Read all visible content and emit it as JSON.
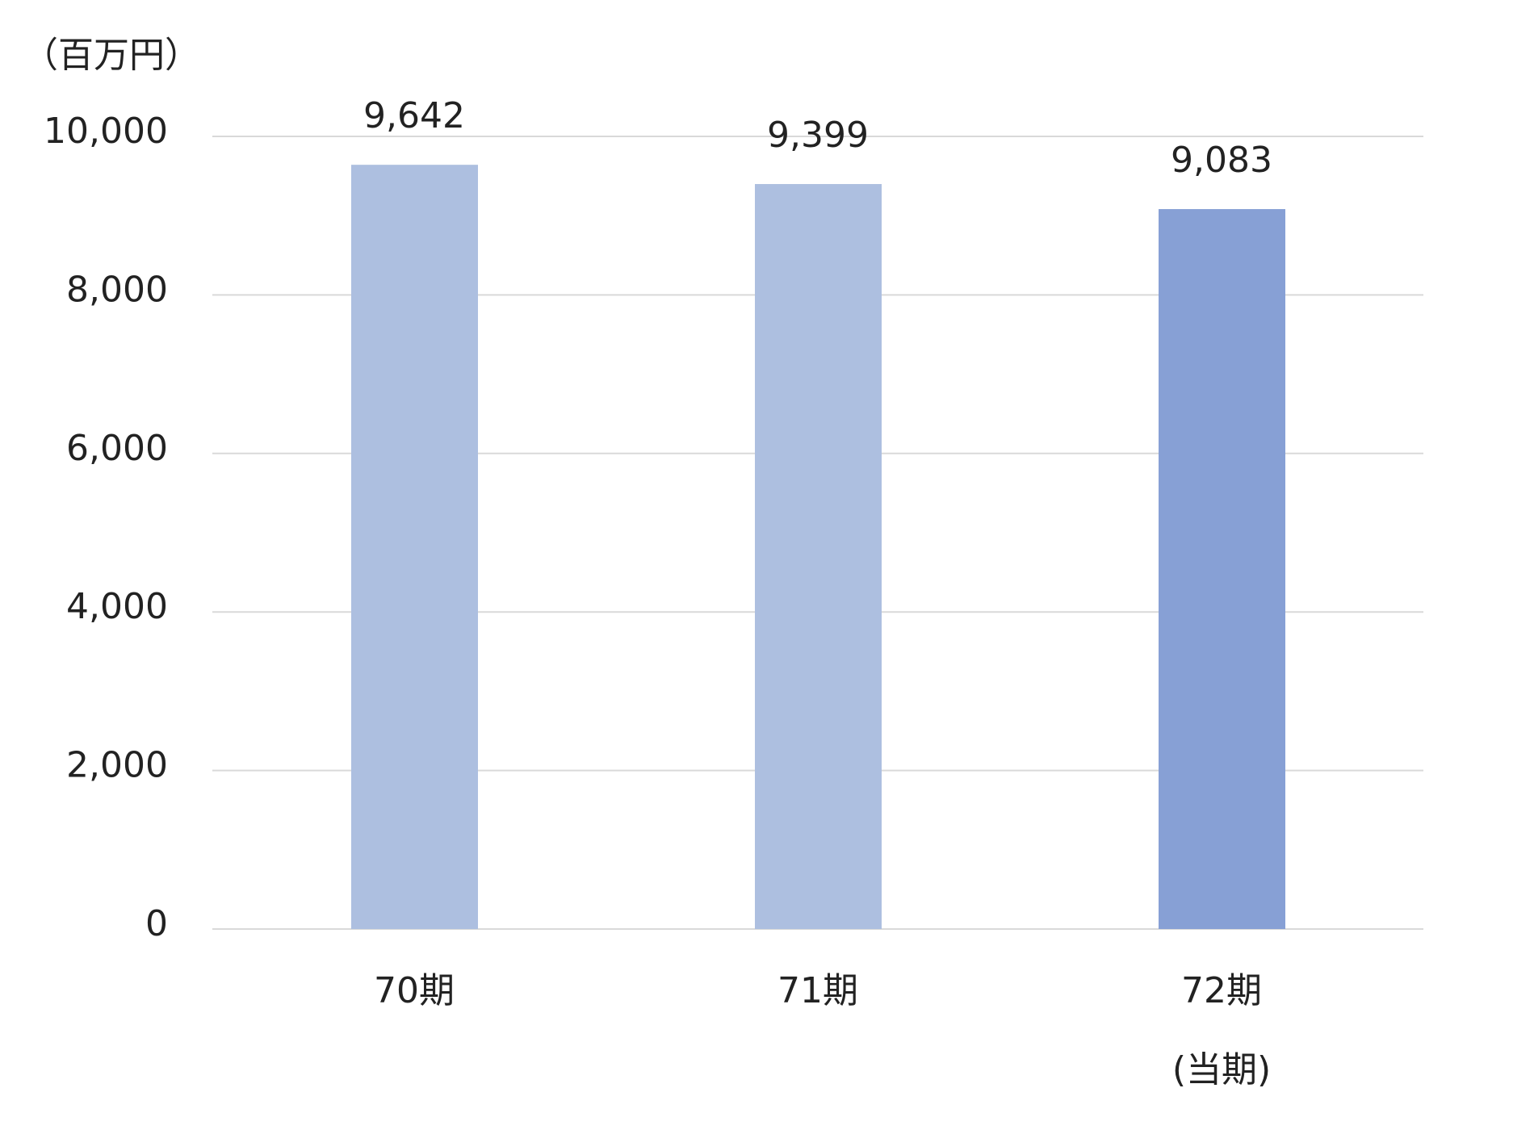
{
  "chart_data": {
    "type": "bar",
    "y_axis_label": "（百万円）",
    "categories": [
      "70期",
      "71期",
      "72期\n(当期)"
    ],
    "values": [
      9642,
      9399,
      9083
    ],
    "value_labels": [
      "9,642",
      "9,399",
      "9,083"
    ],
    "colors": [
      "#adbfe0",
      "#adbfe0",
      "#87a0d5"
    ],
    "ylim": [
      0,
      10000
    ],
    "yticks": [
      0,
      {
        "value": 2000,
        "label": "2,000"
      },
      {
        "value": 4000,
        "label": "4,000"
      },
      {
        "value": 6000,
        "label": "6,000"
      },
      {
        "value": 8000,
        "label": "8,000"
      },
      {
        "value": 10000,
        "label": "10,000"
      }
    ],
    "grid": true
  }
}
